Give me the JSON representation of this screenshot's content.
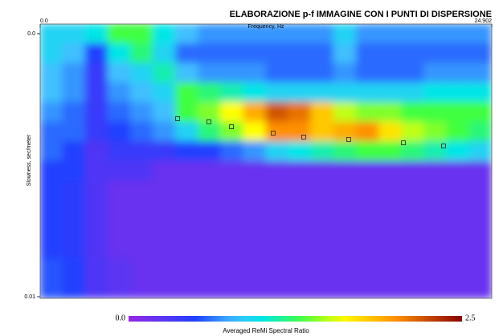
{
  "chart_data": {
    "type": "heatmap",
    "title": "ELABORAZIONE p-f IMMAGINE CON I PUNTI DI DISPERSIONE",
    "x_label": "Frequency, Hz",
    "y_label": "Slowness, sec/meter",
    "colorbar_label": "Averaged ReMi Spectral Ratio",
    "xlim": [
      0,
      24.902
    ],
    "xticks": [
      {
        "value": 0,
        "label": "0.0"
      },
      {
        "value": 24.902,
        "label": "24.902"
      }
    ],
    "ylim": [
      0,
      0.01
    ],
    "yticks": [
      {
        "value": 0,
        "label": "0.0"
      },
      0.01
    ],
    "zlim": [
      0,
      2.5
    ],
    "colorbar_ticks": [
      {
        "value": 0,
        "label": "0.0"
      },
      2.5
    ],
    "z": [
      [
        0.9,
        0.9,
        1.0,
        1.3,
        1.3,
        1.0,
        0.8,
        0.7,
        0.7,
        0.7,
        0.7,
        0.7,
        0.7,
        0.9,
        0.7,
        0.7,
        0.7,
        0.7,
        0.7,
        0.7
      ],
      [
        0.9,
        0.8,
        0.5,
        1.0,
        1.2,
        0.9,
        0.6,
        0.6,
        0.6,
        0.6,
        0.6,
        0.6,
        0.6,
        0.8,
        0.6,
        0.6,
        0.6,
        0.6,
        0.6,
        0.6
      ],
      [
        0.8,
        0.7,
        0.4,
        0.8,
        0.9,
        1.1,
        0.8,
        0.7,
        0.7,
        0.7,
        0.6,
        0.6,
        0.6,
        0.7,
        0.6,
        0.6,
        0.6,
        0.7,
        0.7,
        0.7
      ],
      [
        0.8,
        0.7,
        0.4,
        0.7,
        0.8,
        0.9,
        1.3,
        1.2,
        1.1,
        1.0,
        0.9,
        0.9,
        0.9,
        0.9,
        0.9,
        0.9,
        0.9,
        1.0,
        1.0,
        1.0
      ],
      [
        0.7,
        0.6,
        0.4,
        0.6,
        0.7,
        0.8,
        1.3,
        1.4,
        1.6,
        1.9,
        2.2,
        2.1,
        1.8,
        1.5,
        1.4,
        1.4,
        1.3,
        1.3,
        1.3,
        1.3
      ],
      [
        0.6,
        0.6,
        0.4,
        0.5,
        0.6,
        0.7,
        0.9,
        1.2,
        1.4,
        1.6,
        2.0,
        2.0,
        1.8,
        1.9,
        2.0,
        1.7,
        1.5,
        1.4,
        1.3,
        1.2
      ],
      [
        0.6,
        0.5,
        0.3,
        0.4,
        0.4,
        0.4,
        0.5,
        0.5,
        0.6,
        0.7,
        0.9,
        1.0,
        1.1,
        1.2,
        1.3,
        1.3,
        1.2,
        1.1,
        1.0,
        0.9
      ],
      [
        0.5,
        0.5,
        0.3,
        0.3,
        0.3,
        0.2,
        0.2,
        0.2,
        0.2,
        0.2,
        0.2,
        0.2,
        0.2,
        0.2,
        0.2,
        0.2,
        0.2,
        0.2,
        0.2,
        0.2
      ],
      [
        0.5,
        0.45,
        0.3,
        0.2,
        0.2,
        0.2,
        0.2,
        0.2,
        0.2,
        0.2,
        0.2,
        0.2,
        0.2,
        0.2,
        0.2,
        0.2,
        0.2,
        0.2,
        0.2,
        0.2
      ],
      [
        0.5,
        0.45,
        0.3,
        0.2,
        0.2,
        0.2,
        0.2,
        0.2,
        0.2,
        0.2,
        0.2,
        0.2,
        0.2,
        0.2,
        0.2,
        0.2,
        0.2,
        0.2,
        0.2,
        0.2
      ],
      [
        0.5,
        0.45,
        0.3,
        0.2,
        0.2,
        0.2,
        0.2,
        0.2,
        0.2,
        0.2,
        0.2,
        0.2,
        0.2,
        0.2,
        0.2,
        0.2,
        0.2,
        0.2,
        0.2,
        0.2
      ],
      [
        0.5,
        0.45,
        0.3,
        0.2,
        0.2,
        0.2,
        0.2,
        0.2,
        0.2,
        0.2,
        0.2,
        0.2,
        0.2,
        0.2,
        0.2,
        0.2,
        0.2,
        0.2,
        0.2,
        0.2
      ],
      [
        0.55,
        0.5,
        0.3,
        0.25,
        0.2,
        0.2,
        0.2,
        0.2,
        0.2,
        0.2,
        0.2,
        0.2,
        0.2,
        0.2,
        0.2,
        0.2,
        0.2,
        0.2,
        0.2,
        0.2
      ],
      [
        0.55,
        0.5,
        0.3,
        0.25,
        0.2,
        0.2,
        0.2,
        0.2,
        0.2,
        0.2,
        0.2,
        0.2,
        0.2,
        0.2,
        0.2,
        0.2,
        0.2,
        0.2,
        0.2,
        0.2
      ]
    ],
    "points": {
      "x": [
        7.58,
        9.3,
        10.55,
        12.85,
        14.53,
        17.01,
        20.03,
        22.24
      ],
      "y": [
        0.00323,
        0.00335,
        0.00354,
        0.00378,
        0.00393,
        0.00402,
        0.00415,
        0.00427
      ]
    }
  }
}
